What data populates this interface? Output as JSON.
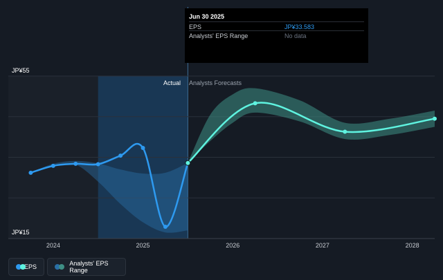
{
  "tooltip": {
    "date": "Jun 30 2025",
    "rows": [
      {
        "label": "EPS",
        "value": "JP¥33.583",
        "color": "#2e9af0"
      },
      {
        "label": "Analysts' EPS Range",
        "value": "No data",
        "color": "#6b7380"
      }
    ]
  },
  "labels": {
    "actual": "Actual",
    "forecast": "Analysts Forecasts"
  },
  "legend": {
    "eps": "EPS",
    "range": "Analysts' EPS Range"
  },
  "colors": {
    "background": "#151b24",
    "eps_actual": "#2e9af0",
    "eps_forecast": "#5ff3e0",
    "range_forecast": "#3e8f85",
    "highlight": "#1a4a78"
  },
  "chart_data": {
    "type": "line",
    "y_tick_labels": [
      "JP¥55",
      "JP¥15"
    ],
    "ylim": [
      15,
      55
    ],
    "x_tick_labels": [
      "2024",
      "2025",
      "2026",
      "2027",
      "2028"
    ],
    "x_ticks": [
      2024.0,
      2025.0,
      2026.0,
      2027.0,
      2028.0
    ],
    "xlim": [
      2023.5,
      2028.25
    ],
    "highlight_range": [
      2024.5,
      2025.5
    ],
    "grid": true,
    "series": [
      {
        "name": "EPS",
        "kind": "actual",
        "x": [
          2023.75,
          2024.0,
          2024.25,
          2024.5,
          2024.75,
          2025.0,
          2025.25,
          2025.5
        ],
        "y": [
          31.2,
          32.9,
          33.4,
          33.3,
          35.4,
          37.3,
          17.9,
          33.6
        ]
      },
      {
        "name": "EPS",
        "kind": "forecast",
        "x": [
          2025.5,
          2026.25,
          2027.25,
          2028.25
        ],
        "y": [
          33.6,
          48.3,
          41.3,
          44.5
        ]
      }
    ],
    "range_bands": [
      {
        "kind": "past",
        "x": [
          2023.75,
          2024.0,
          2024.25,
          2024.5,
          2024.75,
          2025.0,
          2025.25,
          2025.5
        ],
        "low": [
          31.2,
          32.9,
          33.2,
          29.0,
          23.5,
          19.0,
          16.5,
          17.0
        ],
        "high": [
          31.2,
          33.4,
          34.1,
          33.5,
          32.0,
          31.0,
          31.2,
          33.6
        ]
      },
      {
        "kind": "forecast",
        "x": [
          2025.5,
          2025.75,
          2026.0,
          2026.25,
          2026.75,
          2027.25,
          2027.75,
          2028.25
        ],
        "low": [
          33.6,
          39.0,
          43.5,
          46.0,
          43.8,
          39.5,
          40.5,
          42.5
        ],
        "high": [
          33.6,
          45.5,
          50.5,
          52.0,
          49.0,
          43.5,
          44.5,
          46.5
        ]
      }
    ]
  }
}
